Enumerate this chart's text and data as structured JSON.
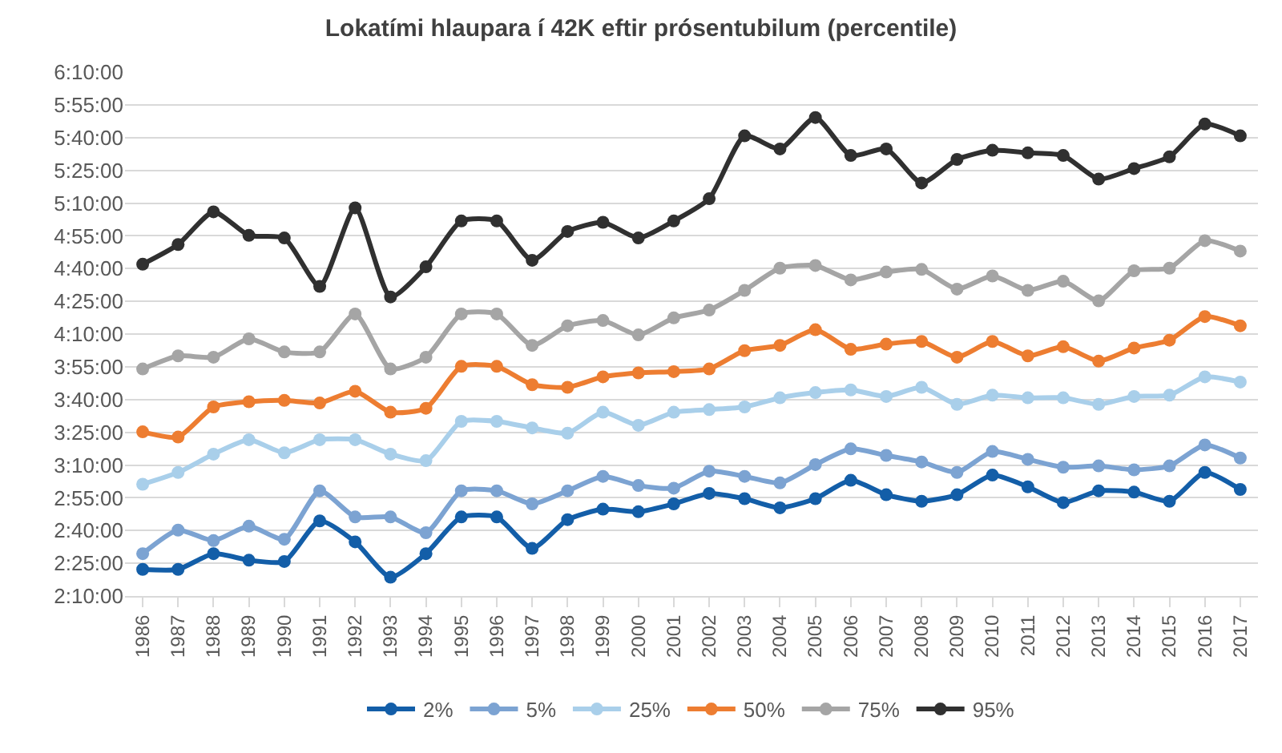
{
  "chart_data": {
    "type": "line",
    "title": "Lokatími hlaupara í 42K eftir prósentubilum (percentile)",
    "categories": [
      "1986",
      "1987",
      "1988",
      "1989",
      "1990",
      "1991",
      "1992",
      "1993",
      "1994",
      "1995",
      "1996",
      "1997",
      "1998",
      "1999",
      "2000",
      "2001",
      "2002",
      "2003",
      "2004",
      "2005",
      "2006",
      "2007",
      "2008",
      "2009",
      "2010",
      "2011",
      "2012",
      "2013",
      "2014",
      "2015",
      "2016",
      "2017"
    ],
    "series": [
      {
        "name": "2%",
        "color": "#135ea8",
        "values": [
          2.37,
          2.37,
          2.49,
          2.44,
          2.43,
          2.74,
          2.58,
          2.31,
          2.49,
          2.77,
          2.77,
          2.53,
          2.75,
          2.83,
          2.81,
          2.87,
          2.95,
          2.91,
          2.84,
          2.91,
          3.05,
          2.94,
          2.89,
          2.94,
          3.09,
          3.0,
          2.88,
          2.97,
          2.96,
          2.89,
          3.11,
          2.98
        ]
      },
      {
        "name": "5%",
        "color": "#7ca3d2",
        "values": [
          2.49,
          2.67,
          2.59,
          2.7,
          2.6,
          2.97,
          2.77,
          2.77,
          2.65,
          2.97,
          2.97,
          2.87,
          2.97,
          3.08,
          3.01,
          2.99,
          3.12,
          3.08,
          3.03,
          3.17,
          3.29,
          3.24,
          3.19,
          3.11,
          3.27,
          3.21,
          3.15,
          3.16,
          3.13,
          3.16,
          3.32,
          3.22
        ]
      },
      {
        "name": "25%",
        "color": "#a9cfea",
        "values": [
          3.02,
          3.11,
          3.25,
          3.36,
          3.26,
          3.36,
          3.36,
          3.25,
          3.2,
          3.5,
          3.5,
          3.45,
          3.41,
          3.57,
          3.47,
          3.57,
          3.59,
          3.61,
          3.68,
          3.72,
          3.74,
          3.69,
          3.76,
          3.63,
          3.7,
          3.68,
          3.68,
          3.63,
          3.69,
          3.7,
          3.84,
          3.8
        ]
      },
      {
        "name": "50%",
        "color": "#ed7d31",
        "values": [
          3.42,
          3.38,
          3.61,
          3.65,
          3.66,
          3.64,
          3.73,
          3.57,
          3.6,
          3.92,
          3.92,
          3.78,
          3.76,
          3.84,
          3.87,
          3.88,
          3.9,
          4.04,
          4.08,
          4.2,
          4.05,
          4.09,
          4.11,
          3.99,
          4.11,
          4.0,
          4.07,
          3.96,
          4.06,
          4.12,
          4.3,
          4.23
        ]
      },
      {
        "name": "75%",
        "color": "#a5a5a5",
        "values": [
          3.9,
          4.0,
          3.99,
          4.13,
          4.03,
          4.03,
          4.32,
          3.9,
          3.99,
          4.32,
          4.32,
          4.08,
          4.23,
          4.27,
          4.16,
          4.29,
          4.35,
          4.5,
          4.67,
          4.69,
          4.58,
          4.64,
          4.66,
          4.51,
          4.61,
          4.5,
          4.57,
          4.42,
          4.65,
          4.67,
          4.88,
          4.8
        ]
      },
      {
        "name": "95%",
        "color": "#303030",
        "values": [
          4.7,
          4.85,
          5.1,
          4.92,
          4.9,
          4.53,
          5.13,
          4.45,
          4.68,
          5.03,
          5.03,
          4.73,
          4.95,
          5.02,
          4.9,
          5.03,
          5.2,
          5.68,
          5.58,
          5.82,
          5.53,
          5.58,
          5.32,
          5.5,
          5.57,
          5.55,
          5.53,
          5.35,
          5.43,
          5.52,
          5.77,
          5.68
        ]
      }
    ],
    "ylim": [
      2.1667,
      6.1667
    ],
    "yticks": [
      {
        "value": 2.1667,
        "label": "2:10:00"
      },
      {
        "value": 2.4167,
        "label": "2:25:00"
      },
      {
        "value": 2.6667,
        "label": "2:40:00"
      },
      {
        "value": 2.9167,
        "label": "2:55:00"
      },
      {
        "value": 3.1667,
        "label": "3:10:00"
      },
      {
        "value": 3.4167,
        "label": "3:25:00"
      },
      {
        "value": 3.6667,
        "label": "3:40:00"
      },
      {
        "value": 3.9167,
        "label": "3:55:00"
      },
      {
        "value": 4.1667,
        "label": "4:10:00"
      },
      {
        "value": 4.4167,
        "label": "4:25:00"
      },
      {
        "value": 4.6667,
        "label": "4:40:00"
      },
      {
        "value": 4.9167,
        "label": "4:55:00"
      },
      {
        "value": 5.1667,
        "label": "5:10:00"
      },
      {
        "value": 5.4167,
        "label": "5:25:00"
      },
      {
        "value": 5.6667,
        "label": "5:40:00"
      },
      {
        "value": 5.9167,
        "label": "5:55:00"
      },
      {
        "value": 6.1667,
        "label": "6:10:00"
      }
    ],
    "grid": "y",
    "legend": "bottom",
    "marker": "circle",
    "line_style": "solid"
  }
}
